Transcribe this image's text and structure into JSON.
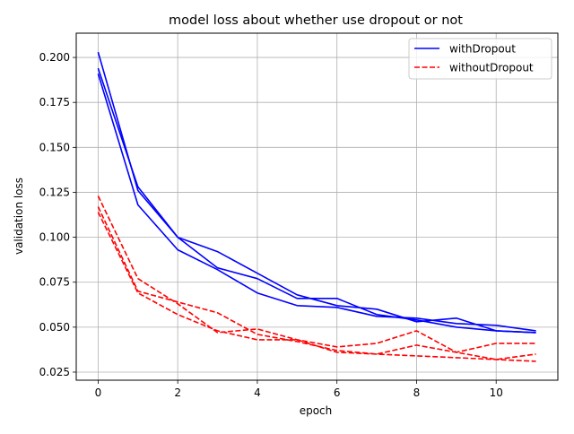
{
  "chart_data": {
    "type": "line",
    "title": "model loss about whether use dropout or not",
    "xlabel": "epoch",
    "ylabel": "validation loss",
    "xlim": [
      -0.55,
      11.55
    ],
    "ylim": [
      0.0205,
      0.2135
    ],
    "xticks": [
      0,
      2,
      4,
      6,
      8,
      10
    ],
    "yticks": [
      0.025,
      0.05,
      0.075,
      0.1,
      0.125,
      0.15,
      0.175,
      0.2
    ],
    "ytick_labels": [
      "0.025",
      "0.050",
      "0.075",
      "0.100",
      "0.125",
      "0.150",
      "0.175",
      "0.200"
    ],
    "grid": true,
    "legend_position": "top-right",
    "x": [
      0,
      1,
      2,
      3,
      4,
      5,
      6,
      7,
      8,
      9,
      10,
      11
    ],
    "series": [
      {
        "group": "withDropout",
        "color": "#0000ff",
        "dash": "solid",
        "values": [
          0.203,
          0.126,
          0.1,
          0.083,
          0.077,
          0.066,
          0.066,
          0.057,
          0.054,
          0.05,
          0.048,
          0.047
        ]
      },
      {
        "group": "withDropout",
        "color": "#0000ff",
        "dash": "solid",
        "values": [
          0.191,
          0.118,
          0.093,
          0.082,
          0.069,
          0.062,
          0.061,
          0.056,
          0.055,
          0.052,
          0.051,
          0.048
        ]
      },
      {
        "group": "withDropout",
        "color": "#0000ff",
        "dash": "solid",
        "values": [
          0.194,
          0.128,
          0.1,
          0.092,
          0.08,
          0.068,
          0.062,
          0.06,
          0.053,
          0.055,
          0.048,
          0.047
        ]
      },
      {
        "group": "withoutDropout",
        "color": "#ff0000",
        "dash": "dashed",
        "values": [
          0.123,
          0.077,
          0.063,
          0.047,
          0.049,
          0.043,
          0.039,
          0.041,
          0.048,
          0.036,
          0.041,
          0.041
        ]
      },
      {
        "group": "withoutDropout",
        "color": "#ff0000",
        "dash": "dashed",
        "values": [
          0.117,
          0.07,
          0.064,
          0.058,
          0.046,
          0.042,
          0.037,
          0.035,
          0.04,
          0.036,
          0.032,
          0.035
        ]
      },
      {
        "group": "withoutDropout",
        "color": "#ff0000",
        "dash": "dashed",
        "values": [
          0.114,
          0.069,
          0.057,
          0.048,
          0.043,
          0.043,
          0.036,
          0.035,
          0.034,
          0.033,
          0.032,
          0.031
        ]
      }
    ],
    "legend": [
      {
        "label": "withDropout",
        "color": "#0000ff",
        "dash": "solid"
      },
      {
        "label": "withoutDropout",
        "color": "#ff0000",
        "dash": "dashed"
      }
    ]
  }
}
